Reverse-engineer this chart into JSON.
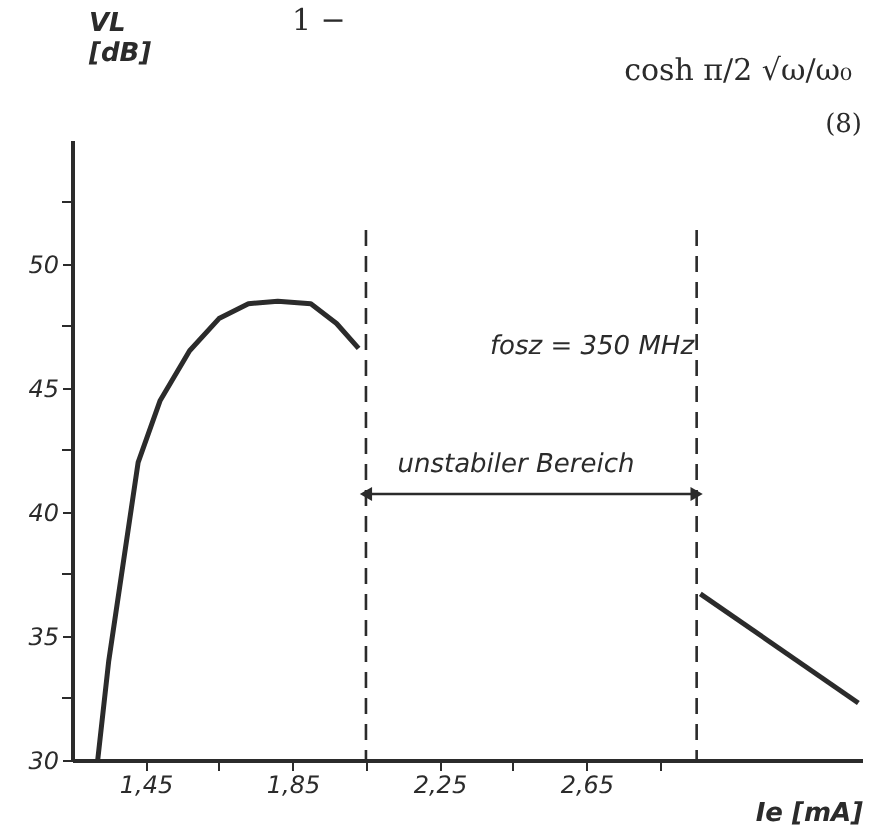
{
  "chart_data": {
    "type": "line",
    "xlabel": "Ie [mA]",
    "ylabel": "VL [dB]",
    "x": [
      1.32,
      1.35,
      1.39,
      1.43,
      1.49,
      1.57,
      1.65,
      1.73,
      1.81,
      1.9,
      1.97,
      2.03
    ],
    "series": [
      {
        "color": "#2b2b2b",
        "values": [
          30,
          34,
          38,
          42,
          44.5,
          46.5,
          47.8,
          48.4,
          48.5,
          48.4,
          47.6,
          46.6
        ]
      },
      {
        "color": "#2b2b2b",
        "x": [
          2.96,
          3.39
        ],
        "values": [
          36.7,
          32.3
        ]
      }
    ],
    "xlim": [
      1.25,
      3.4
    ],
    "ylim": [
      30,
      55
    ],
    "xticks": [
      {
        "value": 1.45,
        "label": "1,45"
      },
      {
        "value": 1.65,
        "label": null
      },
      {
        "value": 1.85,
        "label": "1,85"
      },
      {
        "value": 2.05,
        "label": null
      },
      {
        "value": 2.25,
        "label": "2,25"
      },
      {
        "value": 2.45,
        "label": null
      },
      {
        "value": 2.65,
        "label": "2,65"
      },
      {
        "value": 2.85,
        "label": null
      }
    ],
    "yticks": [
      30,
      {
        "value": 32.5,
        "label": null
      },
      35,
      {
        "value": 37.5,
        "label": null
      },
      40,
      {
        "value": 42.5,
        "label": null
      },
      45,
      {
        "value": 47.5,
        "label": null
      },
      50,
      {
        "value": 52.5,
        "label": null
      }
    ],
    "ref_lines": [
      {
        "axis": "x",
        "value": 2.05,
        "label": null,
        "line_style": "dashed"
      },
      {
        "axis": "x",
        "value": 2.95,
        "label": null,
        "line_style": "dashed"
      }
    ],
    "annotations": [
      "1 −",
      "cosh π/2 √ω/ω₀",
      "(8)",
      "fosz = 350 MHz",
      "unstabiler Bereich"
    ],
    "grid": false,
    "line_style": "solid",
    "marker": "none"
  }
}
